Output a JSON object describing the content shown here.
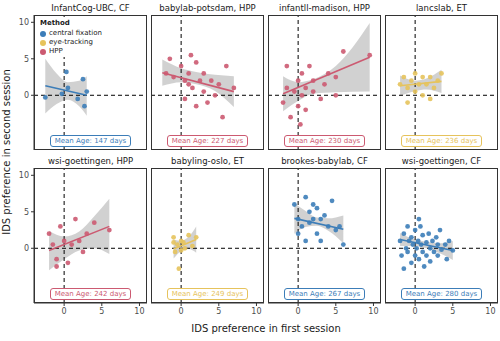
{
  "xlabel": "IDS preference in first session",
  "ylabel": "IDS preference in second session",
  "legend_title": "Method",
  "methods": [
    {
      "name": "central fixation",
      "color": "#3C7DB8"
    },
    {
      "name": "eye-tracking",
      "color": "#E6C35C"
    },
    {
      "name": "HPP",
      "color": "#CC5A71"
    }
  ],
  "reference_lines": {
    "x": 0,
    "y": 0
  },
  "chart_data": [
    {
      "type": "scatter",
      "title": "InfantCog-UBC, CF",
      "method": "central fixation",
      "annotation": "Mean Age: 147 days",
      "legend": "upper left",
      "tick_labels": "y",
      "xlim": [
        -4,
        11
      ],
      "ylim": [
        -7.5,
        11
      ],
      "xticks": [
        0,
        5,
        10
      ],
      "yticks": [
        0,
        5,
        10
      ],
      "points": [
        [
          -2.5,
          -0.3
        ],
        [
          -0.3,
          0.2
        ],
        [
          0.3,
          3.2
        ],
        [
          0.5,
          1.0
        ],
        [
          1.8,
          -0.5
        ],
        [
          2.5,
          2.2
        ],
        [
          3,
          0.5
        ],
        [
          2.7,
          -1.5
        ]
      ],
      "fit_x": [
        -2.5,
        3
      ],
      "fit_y": [
        1.3,
        0
      ],
      "ci_x": [
        -2.5,
        -1,
        0.5,
        2,
        3
      ],
      "ci_lower": [
        -2.5,
        -1.2,
        -0.6,
        -1.5,
        -2.8
      ],
      "ci_upper": [
        5,
        3,
        1.8,
        2,
        2.6
      ]
    },
    {
      "type": "scatter",
      "title": "babylab-potsdam, HPP",
      "method": "HPP",
      "annotation": "Mean Age: 227 days",
      "tick_labels": false,
      "xlim": [
        -4,
        11
      ],
      "ylim": [
        -7.5,
        11
      ],
      "xticks": [
        0,
        5,
        10
      ],
      "yticks": [
        0,
        5,
        10
      ],
      "points": [
        [
          -2,
          3
        ],
        [
          -1.5,
          5
        ],
        [
          -1,
          2.5
        ],
        [
          0,
          4
        ],
        [
          0.5,
          2
        ],
        [
          1,
          3
        ],
        [
          1.3,
          5.5
        ],
        [
          1.5,
          1
        ],
        [
          2,
          4.5
        ],
        [
          2,
          -1.5
        ],
        [
          2.5,
          2
        ],
        [
          3,
          3
        ],
        [
          3.5,
          -1
        ],
        [
          4,
          2
        ],
        [
          4.5,
          0
        ],
        [
          5,
          1.5
        ],
        [
          6,
          4
        ],
        [
          0.5,
          -0.5
        ],
        [
          1,
          1.5
        ],
        [
          3,
          0.5
        ],
        [
          5.5,
          -3
        ],
        [
          7,
          1
        ]
      ],
      "fit_x": [
        -2.5,
        7
      ],
      "fit_y": [
        3.1,
        0.5
      ],
      "ci_x": [
        -2.5,
        0,
        2,
        4.5,
        7
      ],
      "ci_lower": [
        1.3,
        1.8,
        1.5,
        0.6,
        -1.6
      ],
      "ci_upper": [
        4.9,
        3.7,
        3.2,
        2.8,
        2.6
      ]
    },
    {
      "type": "scatter",
      "title": "infantll-madison, HPP",
      "method": "HPP",
      "annotation": "Mean Age: 230 days",
      "tick_labels": false,
      "xlim": [
        -4,
        11
      ],
      "ylim": [
        -7.5,
        11
      ],
      "xticks": [
        0,
        5,
        10
      ],
      "yticks": [
        0,
        5,
        10
      ],
      "points": [
        [
          -2,
          -1
        ],
        [
          -1.5,
          1
        ],
        [
          -1,
          -3
        ],
        [
          -0.5,
          0.5
        ],
        [
          0,
          2
        ],
        [
          0,
          -1.5
        ],
        [
          0.5,
          0
        ],
        [
          0.5,
          3
        ],
        [
          1,
          1
        ],
        [
          1,
          -2
        ],
        [
          1.5,
          4
        ],
        [
          2,
          0.5
        ],
        [
          2,
          2
        ],
        [
          3,
          -0.5
        ],
        [
          3.5,
          1.5
        ],
        [
          4,
          3
        ],
        [
          5,
          0
        ],
        [
          5,
          2.5
        ],
        [
          6,
          6
        ],
        [
          9.5,
          5.5
        ],
        [
          -1.5,
          4
        ],
        [
          0.3,
          -4
        ]
      ],
      "fit_x": [
        -2,
        9.5
      ],
      "fit_y": [
        0.2,
        5.2
      ],
      "ci_x": [
        -2,
        0,
        2,
        5,
        9.5
      ],
      "ci_lower": [
        -2.2,
        -0.8,
        0.2,
        0.4,
        0.5
      ],
      "ci_upper": [
        2.6,
        1.8,
        2.2,
        4,
        9.9
      ]
    },
    {
      "type": "scatter",
      "title": "lancslab, ET",
      "method": "eye-tracking",
      "annotation": "Mean Age: 236 days",
      "tick_labels": false,
      "xlim": [
        -4,
        11
      ],
      "ylim": [
        -7.5,
        11
      ],
      "xticks": [
        0,
        5,
        10
      ],
      "yticks": [
        0,
        5,
        10
      ],
      "points": [
        [
          -2,
          1.5
        ],
        [
          -1.5,
          2.5
        ],
        [
          -1,
          1
        ],
        [
          -0.5,
          2
        ],
        [
          0,
          0.5
        ],
        [
          0,
          3
        ],
        [
          0.5,
          1.5
        ],
        [
          1,
          2.5
        ],
        [
          1,
          0
        ],
        [
          1.5,
          1.5
        ],
        [
          2,
          2.5
        ],
        [
          2.5,
          1
        ],
        [
          3,
          2
        ],
        [
          3.5,
          3
        ],
        [
          -1,
          -1
        ],
        [
          2,
          -0.5
        ]
      ],
      "fit_x": [
        -2,
        3.5
      ],
      "fit_y": [
        1.3,
        1.9
      ],
      "ci_x": [
        -2,
        0,
        1.5,
        3.5
      ],
      "ci_lower": [
        -0.1,
        0.6,
        0.8,
        0.3
      ],
      "ci_upper": [
        2.7,
        2,
        2.3,
        3.5
      ]
    },
    {
      "type": "scatter",
      "title": "wsi-goettingen, HPP",
      "method": "HPP",
      "annotation": "Mean Age: 242 days",
      "tick_labels": true,
      "xlim": [
        -4,
        11
      ],
      "ylim": [
        -7.5,
        11
      ],
      "xticks": [
        0,
        5,
        10
      ],
      "yticks": [
        0,
        5,
        10
      ],
      "points": [
        [
          -2,
          2
        ],
        [
          -1.5,
          0.5
        ],
        [
          -1,
          -1.5
        ],
        [
          -0.5,
          3
        ],
        [
          0,
          1
        ],
        [
          0.5,
          -2
        ],
        [
          1,
          0.5
        ],
        [
          1.5,
          4
        ],
        [
          2,
          1
        ],
        [
          2.5,
          -0.5
        ],
        [
          3,
          2
        ],
        [
          4,
          3.5
        ],
        [
          6,
          2.5
        ],
        [
          -1,
          -2.5
        ]
      ],
      "fit_x": [
        -2,
        6
      ],
      "fit_y": [
        -0.3,
        3
      ],
      "ci_x": [
        -2,
        0,
        2,
        4,
        6
      ],
      "ci_lower": [
        -3,
        -1.5,
        -0.3,
        0,
        -0.8
      ],
      "ci_upper": [
        2.4,
        1.6,
        2.3,
        4.4,
        6.8
      ]
    },
    {
      "type": "scatter",
      "title": "babyling-oslo, ET",
      "method": "eye-tracking",
      "annotation": "Mean Age: 249 days",
      "tick_labels": "x",
      "xlim": [
        -4,
        11
      ],
      "ylim": [
        -7.5,
        11
      ],
      "xticks": [
        0,
        5,
        10
      ],
      "yticks": [
        0,
        5,
        10
      ],
      "points": [
        [
          -1,
          1.5
        ],
        [
          -0.8,
          -0.5
        ],
        [
          -0.5,
          0.5
        ],
        [
          -0.3,
          -2.8
        ],
        [
          0,
          1
        ],
        [
          0,
          -0.3
        ],
        [
          0.3,
          0.8
        ],
        [
          0.5,
          0
        ],
        [
          1,
          1.8
        ],
        [
          1.5,
          0.3
        ],
        [
          2,
          1.5
        ],
        [
          -1,
          0.8
        ]
      ],
      "fit_x": [
        -1,
        2
      ],
      "fit_y": [
        -0.1,
        1.2
      ],
      "ci_x": [
        -1,
        0,
        1,
        2
      ],
      "ci_lower": [
        -1.4,
        -0.4,
        -0.1,
        -0.6
      ],
      "ci_upper": [
        1.2,
        1,
        1.6,
        3
      ]
    },
    {
      "type": "scatter",
      "title": "brookes-babylab, CF",
      "method": "central fixation",
      "annotation": "Mean Age: 267 days",
      "tick_labels": "x",
      "xlim": [
        -4,
        11
      ],
      "ylim": [
        -7.5,
        11
      ],
      "xticks": [
        0,
        5,
        10
      ],
      "yticks": [
        0,
        5,
        10
      ],
      "points": [
        [
          -0.5,
          6
        ],
        [
          0,
          4
        ],
        [
          0,
          2
        ],
        [
          0.5,
          3
        ],
        [
          1,
          7
        ],
        [
          1.5,
          5
        ],
        [
          1.5,
          3.5
        ],
        [
          2,
          4
        ],
        [
          2.5,
          2
        ],
        [
          2.5,
          5.5
        ],
        [
          3,
          4
        ],
        [
          3,
          1
        ],
        [
          3.5,
          4.5
        ],
        [
          4,
          3
        ],
        [
          4.5,
          6.5
        ],
        [
          5,
          2.5
        ],
        [
          5.5,
          3
        ],
        [
          6,
          0.5
        ],
        [
          1,
          1
        ],
        [
          2,
          6
        ]
      ],
      "fit_x": [
        -0.5,
        6
      ],
      "fit_y": [
        4.1,
        2.6
      ],
      "ci_x": [
        -0.5,
        1,
        2.5,
        4,
        6
      ],
      "ci_lower": [
        2,
        2.9,
        3.1,
        2.4,
        0.7
      ],
      "ci_upper": [
        6.2,
        5.1,
        4.2,
        4.1,
        4.5
      ]
    },
    {
      "type": "scatter",
      "title": "wsi-goettingen, CF",
      "method": "central fixation",
      "annotation": "Mean Age: 280 days",
      "tick_labels": "x",
      "xlim": [
        -4,
        11
      ],
      "ylim": [
        -7.5,
        11
      ],
      "xticks": [
        0,
        5,
        10
      ],
      "yticks": [
        0,
        5,
        10
      ],
      "points": [
        [
          -2,
          1
        ],
        [
          -1.8,
          -1
        ],
        [
          -1.5,
          2
        ],
        [
          -1.2,
          0
        ],
        [
          -1,
          3
        ],
        [
          -1,
          -0.5
        ],
        [
          -0.8,
          1
        ],
        [
          -0.5,
          -2
        ],
        [
          -0.5,
          1.5
        ],
        [
          -0.3,
          0.5
        ],
        [
          0,
          2.5
        ],
        [
          0,
          -1
        ],
        [
          0.2,
          0
        ],
        [
          0.4,
          1
        ],
        [
          0.5,
          -1.5
        ],
        [
          0.7,
          3
        ],
        [
          0.8,
          0.5
        ],
        [
          1,
          -0.5
        ],
        [
          1,
          1.8
        ],
        [
          1.2,
          -2.5
        ],
        [
          1.5,
          0.8
        ],
        [
          1.5,
          -1
        ],
        [
          1.8,
          2
        ],
        [
          2,
          0
        ],
        [
          2,
          -1.8
        ],
        [
          2.3,
          1
        ],
        [
          2.5,
          -0.5
        ],
        [
          2.8,
          1.5
        ],
        [
          3,
          -1
        ],
        [
          3,
          0.5
        ],
        [
          3.3,
          2.5
        ],
        [
          3.5,
          -0.2
        ],
        [
          4,
          0.5
        ],
        [
          4.2,
          -1.5
        ],
        [
          4.5,
          1
        ],
        [
          5,
          -0.3
        ],
        [
          0.5,
          4
        ],
        [
          -1.5,
          -2.8
        ]
      ],
      "fit_x": [
        -2,
        5
      ],
      "fit_y": [
        1.2,
        -0.3
      ],
      "ci_x": [
        -2,
        0,
        1.5,
        3.5,
        5
      ],
      "ci_lower": [
        0.3,
        0.3,
        0,
        -0.8,
        -1.6
      ],
      "ci_upper": [
        2.1,
        1.2,
        0.9,
        0.7,
        1
      ]
    }
  ]
}
